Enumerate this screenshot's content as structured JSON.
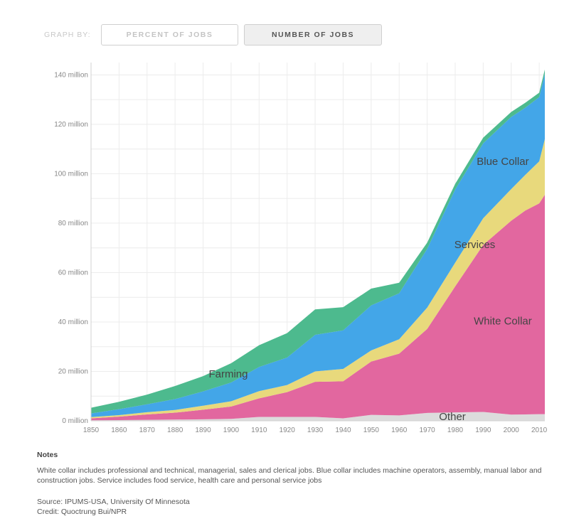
{
  "toolbar": {
    "label": "GRAPH BY:",
    "options": [
      "PERCENT OF JOBS",
      "NUMBER OF JOBS"
    ],
    "selected": "NUMBER OF JOBS"
  },
  "notes": {
    "title": "Notes",
    "body": "White collar includes professional and technical, managerial, sales and clerical jobs. Blue collar includes machine operators, assembly, manual labor and construction jobs. Service includes food service, health care and personal service jobs",
    "source": "Source: IPUMS-USA, University Of Minnesota",
    "credit": "Credit: Quoctrung Bui/NPR"
  },
  "colors": {
    "other": "#dcdcdc",
    "white_collar": "#e2679f",
    "services": "#e8d97c",
    "blue_collar": "#43a6e8",
    "farming": "#4dba8e"
  },
  "chart_data": {
    "type": "area",
    "stacked": true,
    "x": [
      1850,
      1860,
      1870,
      1880,
      1890,
      1900,
      1910,
      1920,
      1930,
      1940,
      1950,
      1960,
      1970,
      1980,
      1990,
      2000,
      2005,
      2010,
      2012
    ],
    "series": [
      {
        "name": "Other",
        "values": [
          0.2,
          0.3,
          0.4,
          0.5,
          0.6,
          0.8,
          1.6,
          1.6,
          1.6,
          1.0,
          2.4,
          2.2,
          3.2,
          3.4,
          3.6,
          2.5,
          2.6,
          2.7,
          2.7
        ]
      },
      {
        "name": "White Collar",
        "values": [
          0.8,
          1.4,
          2.2,
          2.8,
          3.9,
          5.0,
          7.5,
          10.0,
          14.2,
          15.0,
          21.6,
          25.0,
          34.0,
          51.0,
          67.6,
          78.5,
          82.5,
          85.3,
          88.8
        ]
      },
      {
        "name": "Services",
        "values": [
          0.5,
          0.6,
          0.9,
          1.1,
          1.6,
          2.1,
          2.9,
          2.9,
          4.2,
          5.0,
          4.5,
          5.8,
          8.6,
          9.6,
          10.8,
          12.8,
          14.4,
          17.0,
          22.5
        ]
      },
      {
        "name": "Blue Collar",
        "values": [
          1.5,
          2.4,
          3.2,
          4.4,
          5.8,
          7.6,
          9.8,
          11.1,
          14.8,
          15.6,
          18.2,
          18.6,
          23.8,
          29.6,
          30.3,
          29.2,
          27.2,
          26.0,
          26.4
        ]
      },
      {
        "name": "Farming",
        "values": [
          2.3,
          3.0,
          3.9,
          5.3,
          6.2,
          7.8,
          8.8,
          9.9,
          10.3,
          9.4,
          6.8,
          4.3,
          2.5,
          2.3,
          2.3,
          2.0,
          2.0,
          1.8,
          1.8
        ]
      }
    ],
    "xlim": [
      1850,
      2012
    ],
    "ylim": [
      0,
      145
    ],
    "yticks": [
      0,
      20,
      40,
      60,
      80,
      100,
      120,
      140
    ],
    "ytick_labels": [
      "0 million",
      "20 million",
      "40 million",
      "60 million",
      "80 million",
      "100 million",
      "120 million",
      "140 million"
    ],
    "xticks": [
      1850,
      1860,
      1870,
      1880,
      1890,
      1900,
      1910,
      1920,
      1930,
      1940,
      1950,
      1960,
      1970,
      1980,
      1990,
      2000,
      2010
    ],
    "annotations": [
      {
        "text": "Farming",
        "series": "Farming",
        "x": 1899
      },
      {
        "text": "Blue Collar",
        "series": "Blue Collar",
        "x": 1997
      },
      {
        "text": "Services",
        "series": "Services",
        "x": 1987
      },
      {
        "text": "White Collar",
        "series": "White Collar",
        "x": 1997
      },
      {
        "text": "Other",
        "series": "Other",
        "x": 1979
      }
    ],
    "grid": true,
    "legend": "none"
  }
}
